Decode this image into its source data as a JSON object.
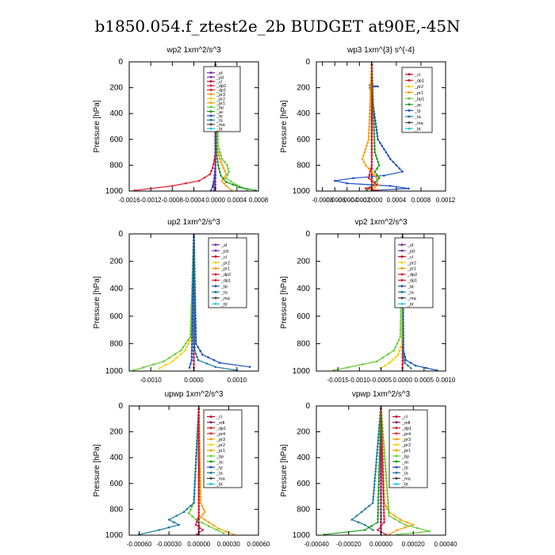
{
  "page_title": "b1850.054.f_ztest2e_2b  BUDGET at90E,-45N",
  "colors": {
    "sf": "#7b2fa0",
    "pd": "#7b2fa0",
    "cl": "#c0002a",
    "mfl": "#8b1a6b",
    "dp1": "#e01a2a",
    "dp2": "#e01a2a",
    "pr1": "#f4a000",
    "pr2": "#f4d000",
    "pr3": "#e8a000",
    "pr4": "#e82a2a",
    "bp": "#66cc33",
    "bp1": "#66cc33",
    "ac": "#1a9a1a",
    "tp": "#1a4fc0",
    "ta": "#1a7a9a",
    "ma": "#444444",
    "bt": "#26c6da"
  },
  "chart_data": [
    {
      "type": "line",
      "title": "wp2   1xm^2/s^3",
      "ylabel": "Pressure  [hPa]",
      "ylim": [
        1000,
        0
      ],
      "yticks": [
        0,
        200,
        400,
        600,
        800,
        1000
      ],
      "xlim": [
        -0.0016,
        0.0008
      ],
      "xticks": [
        -0.0016,
        -0.0012,
        -0.0008,
        -0.0004,
        0,
        0.0004,
        0.0008
      ],
      "xticklabels": [
        "-0.0016",
        "-0.0012",
        "-0.0008",
        "-0.0004",
        "0.0000",
        "0.0004",
        "0.0008"
      ],
      "legend": [
        "_sf",
        "_pd",
        "_cl",
        "_dp2",
        "_dp1",
        "_pr3",
        "_pr2",
        "_pr1",
        "_bp",
        "_ac",
        "_tp",
        "_ta",
        "_ma",
        "_bt"
      ],
      "series": [
        {
          "name": "_sf",
          "key": "sf",
          "x": [
            0,
            0,
            0,
            0,
            0,
            0,
            0,
            0,
            0,
            0,
            0
          ],
          "y": [
            0,
            100,
            200,
            300,
            400,
            500,
            600,
            700,
            800,
            900,
            1000
          ]
        },
        {
          "name": "_dp1",
          "key": "dp1",
          "x": [
            0,
            0,
            0,
            -2e-05,
            -5e-05,
            -0.0001,
            -0.0003,
            -0.0008,
            -0.0015
          ],
          "y": [
            0,
            600,
            700,
            760,
            820,
            870,
            920,
            960,
            995
          ]
        },
        {
          "name": "_pr1",
          "key": "pr1",
          "x": [
            0,
            2e-05,
            8e-05,
            0.00015,
            0.0002,
            0.00012,
            0.0002,
            0.0003
          ],
          "y": [
            0,
            650,
            750,
            820,
            870,
            920,
            960,
            995
          ]
        },
        {
          "name": "_bp",
          "key": "bp",
          "x": [
            0,
            5e-05,
            0.00012,
            0.00022,
            0.00025,
            0.0002,
            0.00038,
            0.0006
          ],
          "y": [
            0,
            650,
            750,
            800,
            850,
            900,
            950,
            995
          ]
        },
        {
          "name": "_ac",
          "key": "ac",
          "x": [
            0,
            2e-05,
            5e-05,
            0.0001,
            0.0002,
            0.00045,
            0.00075
          ],
          "y": [
            0,
            700,
            800,
            880,
            930,
            970,
            995
          ]
        },
        {
          "name": "_tp",
          "key": "tp",
          "x": [
            0,
            0,
            -2e-05,
            -5e-05,
            -8e-05
          ],
          "y": [
            0,
            800,
            900,
            960,
            995
          ]
        },
        {
          "name": "_pd",
          "key": "pd",
          "x": [
            0,
            0,
            0,
            -3e-05,
            -2e-05
          ],
          "y": [
            0,
            700,
            900,
            970,
            995
          ]
        }
      ]
    },
    {
      "type": "line",
      "title": "wp3   1xm^{3} s^{-4}",
      "ylabel": "Pressure  [hPa]",
      "ylim": [
        1000,
        0
      ],
      "yticks": [
        0,
        200,
        400,
        600,
        800,
        1000
      ],
      "xlim": [
        -0.0009,
        0.0012
      ],
      "xticks": [
        -0.0008,
        -0.0006,
        -0.0004,
        -0.0002,
        0,
        0.0004,
        0.0008,
        0.0012
      ],
      "xticklabels": [
        "-0.0008",
        "-0.0006",
        "-0.0004",
        "-0.0002",
        "-0.0000",
        "0.0004",
        "0.0008",
        "0.0012"
      ],
      "legend": [
        "_cl",
        "_dp1",
        "_pr2",
        "_pr1",
        "_bp1",
        "_ac",
        "_tp",
        "_ta",
        "_ma",
        "_bt"
      ],
      "series": [
        {
          "name": "_cl",
          "key": "cl",
          "x": [
            0,
            0,
            0,
            0,
            0,
            0,
            0,
            0,
            0,
            0,
            0
          ],
          "y": [
            0,
            100,
            200,
            300,
            400,
            500,
            600,
            700,
            800,
            900,
            1000
          ]
        },
        {
          "name": "_tp",
          "key": "tp",
          "x": [
            0,
            0,
            -3e-05,
            0.0001,
            -3e-05,
            0,
            0.0001,
            0.0003,
            0.0005,
            0.0002,
            -0.0003,
            -0.0006,
            -0.0004,
            0.0003,
            0.0006,
            0
          ],
          "y": [
            0,
            150,
            180,
            190,
            200,
            260,
            600,
            750,
            850,
            880,
            900,
            920,
            940,
            960,
            980,
            995
          ]
        },
        {
          "name": "_pr1",
          "key": "pr1",
          "x": [
            0,
            -5e-05,
            -0.00015,
            -0.0001,
            0,
            8e-05,
            0.0001,
            0
          ],
          "y": [
            0,
            600,
            750,
            800,
            850,
            900,
            950,
            995
          ]
        },
        {
          "name": "_ac",
          "key": "ac",
          "x": [
            0,
            5e-05,
            0.00012,
            5e-05,
            0.00012,
            0,
            -8e-05
          ],
          "y": [
            0,
            700,
            800,
            850,
            900,
            960,
            995
          ]
        },
        {
          "name": "_dp1",
          "key": "dp1",
          "x": [
            0,
            0,
            -5e-05,
            8e-05,
            -0.0001,
            0.0001
          ],
          "y": [
            0,
            800,
            900,
            950,
            980,
            995
          ]
        }
      ]
    },
    {
      "type": "line",
      "title": "up2   1xm^2/s^3",
      "ylabel": "Pressure  [hPa]",
      "ylim": [
        1000,
        0
      ],
      "yticks": [
        0,
        200,
        400,
        600,
        800,
        1000
      ],
      "xlim": [
        -0.0015,
        0.0015
      ],
      "xticks": [
        -0.001,
        0,
        0.001
      ],
      "xticklabels": [
        "-0.0010",
        "0.0000",
        "0.0010"
      ],
      "legend": [
        "_sf",
        "_pd",
        "_cl",
        "_pr2",
        "_pr1",
        "_dp2",
        "_dp1",
        "_tp",
        "_ta",
        "_ma",
        "_bt"
      ],
      "series": [
        {
          "name": "_sf",
          "key": "sf",
          "x": [
            0,
            0,
            0,
            0,
            0,
            0,
            0,
            0,
            0,
            0,
            0
          ],
          "y": [
            0,
            100,
            200,
            300,
            400,
            500,
            600,
            700,
            800,
            900,
            1000
          ]
        },
        {
          "name": "_pd",
          "key": "dp1",
          "x": [
            0,
            0,
            0,
            0,
            0,
            0,
            0,
            0,
            0,
            0,
            0
          ],
          "y": [
            0,
            100,
            200,
            300,
            400,
            500,
            600,
            700,
            800,
            900,
            1000
          ]
        },
        {
          "name": "_pr2",
          "key": "pr2",
          "x": [
            0,
            -5e-05,
            -0.0002,
            -0.0005,
            -0.0008
          ],
          "y": [
            0,
            750,
            850,
            930,
            980
          ]
        },
        {
          "name": "_dp2",
          "key": "bp",
          "x": [
            0,
            -8e-05,
            -0.0003,
            -0.0007,
            -0.0014
          ],
          "y": [
            0,
            750,
            850,
            930,
            995
          ]
        },
        {
          "name": "_tp",
          "key": "tp",
          "x": [
            0,
            5e-05,
            0.0002,
            0.0006,
            0.0013
          ],
          "y": [
            0,
            800,
            880,
            940,
            970
          ]
        },
        {
          "name": "_ta",
          "key": "ta",
          "x": [
            0,
            2e-05,
            0.0001,
            0.0005,
            0.001
          ],
          "y": [
            0,
            850,
            920,
            970,
            995
          ]
        },
        {
          "name": "_dp1",
          "key": "tp",
          "x": [
            0,
            -5e-05,
            -0.0001
          ],
          "y": [
            0,
            920,
            975
          ]
        }
      ]
    },
    {
      "type": "line",
      "title": "vp2   1xm^2/s^3",
      "ylabel": "Pressure  [hPa]",
      "ylim": [
        1000,
        0
      ],
      "yticks": [
        0,
        200,
        400,
        600,
        800,
        1000
      ],
      "xlim": [
        -0.002,
        0.001
      ],
      "xticks": [
        -0.0015,
        -0.001,
        -0.0005,
        0,
        0.0005,
        0.001
      ],
      "xticklabels": [
        "-0.0015",
        "-0.0010",
        "-0.0005",
        "0.0000",
        "0.0005",
        "0.0010"
      ],
      "legend": [
        "_sf",
        "_pd",
        "_cl",
        "_pr2",
        "_pr1",
        "_dp2",
        "_dp1",
        "_tp",
        "_ta",
        "_ma",
        "_bt"
      ],
      "series": [
        {
          "name": "_sf",
          "key": "sf",
          "x": [
            0,
            0,
            0,
            0,
            0,
            0,
            0,
            0,
            0,
            0,
            0
          ],
          "y": [
            0,
            100,
            200,
            300,
            400,
            500,
            600,
            700,
            800,
            900,
            1000
          ]
        },
        {
          "name": "_pd",
          "key": "dp1",
          "x": [
            0,
            0,
            0,
            0,
            0,
            0,
            0,
            0,
            0,
            0,
            0
          ],
          "y": [
            0,
            100,
            200,
            300,
            400,
            500,
            600,
            700,
            800,
            900,
            1000
          ]
        },
        {
          "name": "_dp2",
          "key": "bp",
          "x": [
            0,
            -5e-05,
            -0.0002,
            -0.0006,
            -0.0016
          ],
          "y": [
            0,
            750,
            850,
            930,
            995
          ]
        },
        {
          "name": "_pr2",
          "key": "pr2",
          "x": [
            0,
            -2e-05,
            -0.0001,
            -0.0003,
            -0.0005
          ],
          "y": [
            0,
            800,
            880,
            940,
            980
          ]
        },
        {
          "name": "_tp",
          "key": "tp",
          "x": [
            0,
            2e-05,
            8e-05,
            0.0003,
            0.0008
          ],
          "y": [
            0,
            850,
            920,
            960,
            995
          ]
        },
        {
          "name": "_ta",
          "key": "ta",
          "x": [
            0,
            2e-05,
            5e-05,
            0.0002
          ],
          "y": [
            0,
            880,
            940,
            980
          ]
        }
      ]
    },
    {
      "type": "line",
      "title": "upwp   1xm^2/s^3",
      "ylabel": "Pressure  [hPa]",
      "ylim": [
        1000,
        0
      ],
      "yticks": [
        0,
        200,
        400,
        600,
        800,
        1000
      ],
      "xlim": [
        -0.0007,
        0.0006
      ],
      "xticks": [
        -0.0006,
        -0.0003,
        0,
        0.0003,
        0.0006
      ],
      "xticklabels": [
        "-0.00060",
        "-0.00030",
        "0.00000",
        "0.00030",
        "0.00060"
      ],
      "legend": [
        "_cl",
        "_mfl",
        "_dp1",
        "_pr4",
        "_pr3",
        "_pr2",
        "_pr1",
        "_bp",
        "_ac",
        "_tp",
        "_ta",
        "_ma",
        "_bt"
      ],
      "series": [
        {
          "name": "_cl",
          "key": "sf",
          "x": [
            0,
            0,
            0,
            0,
            0,
            0,
            0,
            0,
            0,
            0,
            0
          ],
          "y": [
            0,
            100,
            200,
            300,
            400,
            500,
            600,
            700,
            800,
            900,
            1000
          ]
        },
        {
          "name": "_mfl",
          "key": "mfl",
          "x": [
            0,
            0,
            0,
            0,
            0,
            0,
            0,
            0,
            0,
            0,
            0
          ],
          "y": [
            0,
            100,
            200,
            300,
            400,
            500,
            600,
            700,
            800,
            900,
            1000
          ]
        },
        {
          "name": "_pr1",
          "key": "pr1",
          "x": [
            0,
            2e-05,
            6e-05,
            2e-05,
            0.0001,
            0.0002,
            0.00035
          ],
          "y": [
            0,
            750,
            820,
            860,
            900,
            950,
            995
          ]
        },
        {
          "name": "_bp",
          "key": "bp",
          "x": [
            0,
            -5e-05,
            -0.0001,
            -3e-05,
            0.0001,
            0.00025
          ],
          "y": [
            0,
            750,
            830,
            880,
            930,
            985
          ]
        },
        {
          "name": "_tp",
          "key": "ta",
          "x": [
            0,
            -5e-05,
            -0.00015,
            -0.0003,
            -0.0002,
            -0.0004,
            -0.0006
          ],
          "y": [
            0,
            750,
            820,
            880,
            920,
            960,
            995
          ]
        },
        {
          "name": "_dp1",
          "key": "dp1",
          "x": [
            0,
            0,
            -3e-05,
            4e-05,
            -2e-05
          ],
          "y": [
            0,
            850,
            920,
            960,
            995
          ]
        }
      ]
    },
    {
      "type": "line",
      "title": "vpwp   1xm^2/s^3",
      "ylabel": "Pressure  [hPa]",
      "ylim": [
        1000,
        0
      ],
      "yticks": [
        0,
        200,
        400,
        600,
        800,
        1000
      ],
      "xlim": [
        -0.0004,
        0.0004
      ],
      "xticks": [
        -0.0004,
        -0.0002,
        0,
        0.0002,
        0.0004
      ],
      "xticklabels": [
        "-0.00040",
        "-0.00020",
        "0.00000",
        "0.00020",
        "0.00040"
      ],
      "legend": [
        "_cl",
        "_mfl",
        "_dp1",
        "_pr4",
        "_pr3",
        "_pr2",
        "_pr1",
        "_bp",
        "_ac",
        "_tp",
        "_ta",
        "_ma",
        "_bt"
      ],
      "series": [
        {
          "name": "_cl",
          "key": "sf",
          "x": [
            0,
            0,
            0,
            0,
            0,
            0,
            0,
            0,
            0,
            0,
            0
          ],
          "y": [
            0,
            100,
            200,
            300,
            400,
            500,
            600,
            700,
            800,
            900,
            1000
          ]
        },
        {
          "name": "_mfl",
          "key": "mfl",
          "x": [
            0,
            0,
            0,
            0,
            0,
            0,
            0,
            0,
            0,
            0,
            0
          ],
          "y": [
            0,
            100,
            200,
            300,
            400,
            500,
            600,
            700,
            800,
            900,
            1000
          ]
        },
        {
          "name": "_pr1",
          "key": "pr1",
          "x": [
            0,
            2e-05,
            5e-05,
            0.00012,
            0.0002,
            0.0001,
            5e-05
          ],
          "y": [
            0,
            750,
            820,
            880,
            920,
            960,
            995
          ]
        },
        {
          "name": "_tp",
          "key": "ta",
          "x": [
            0,
            -5e-05,
            -0.00012,
            -0.00018,
            -0.0001,
            -5e-05
          ],
          "y": [
            0,
            750,
            820,
            880,
            920,
            960
          ]
        },
        {
          "name": "_bp",
          "key": "bp",
          "x": [
            0,
            5e-05,
            0.00015,
            0.0003,
            0.0001
          ],
          "y": [
            0,
            850,
            920,
            970,
            995
          ]
        },
        {
          "name": "_ac",
          "key": "ac",
          "x": [
            0,
            -2e-05,
            -0.0001,
            -0.00035
          ],
          "y": [
            0,
            900,
            960,
            995
          ]
        },
        {
          "name": "_dp1",
          "key": "dp1",
          "x": [
            0,
            2e-05,
            -2e-05,
            3e-05
          ],
          "y": [
            0,
            900,
            960,
            995
          ]
        }
      ]
    }
  ]
}
